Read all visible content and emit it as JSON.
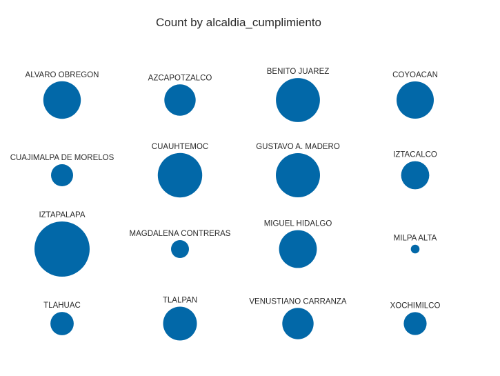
{
  "chart_data": {
    "type": "bubble",
    "title": "Count by alcaldia_cumplimiento",
    "color": "#0268a8",
    "grid": false,
    "legend": "none",
    "categories": [
      "ALVARO OBREGON",
      "AZCAPOTZALCO",
      "BENITO JUAREZ",
      "COYOACAN",
      "CUAJIMALPA DE MORELOS",
      "CUAUHTEMOC",
      "GUSTAVO A. MADERO",
      "IZTACALCO",
      "IZTAPALAPA",
      "MAGDALENA CONTRERAS",
      "MIGUEL HIDALGO",
      "MILPA ALTA",
      "TLAHUAC",
      "TLALPAN",
      "VENUSTIANO CARRANZA",
      "XOCHIMILCO"
    ],
    "values": [
      750,
      520,
      1030,
      740,
      260,
      1050,
      1040,
      420,
      1620,
      170,
      760,
      40,
      290,
      610,
      520,
      280
    ]
  }
}
